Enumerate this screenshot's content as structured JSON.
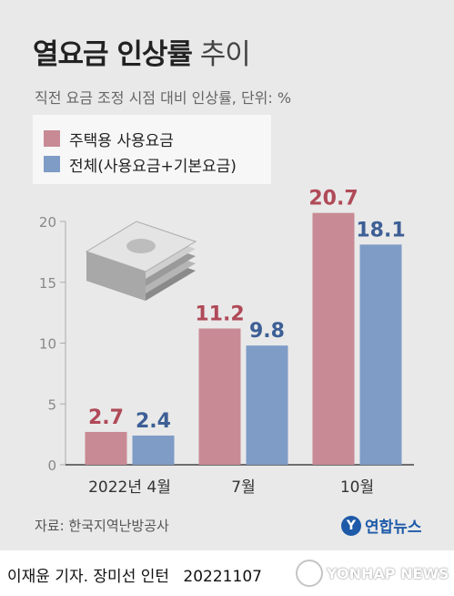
{
  "header": {
    "title_bold": "열요금 인상률",
    "title_light": "추이",
    "subtitle": "직전 요금 조정 시점 대비 인상률, 단위: %"
  },
  "chart_data": {
    "type": "bar",
    "categories": [
      "2022년 4월",
      "7월",
      "10월"
    ],
    "series": [
      {
        "name": "주택용 사용요금",
        "values": [
          2.7,
          11.2,
          20.7
        ],
        "color": "#c88a94",
        "label_color": "#b04a58"
      },
      {
        "name": "전체(사용요금+기본요금)",
        "values": [
          2.4,
          9.8,
          18.1
        ],
        "color": "#7e9cc6",
        "label_color": "#3d5f95"
      }
    ],
    "yticks": [
      "0",
      "5",
      "10",
      "15",
      "20"
    ],
    "ylim": [
      0,
      20
    ],
    "grid": false,
    "legend": "top-left"
  },
  "footer": {
    "source": "자료: 한국지역난방공사",
    "logo": "연합뉴스",
    "credit": "이재윤 기자. 장미선 인턴",
    "date": "20221107",
    "watermark": "YONHAP NEWS"
  }
}
